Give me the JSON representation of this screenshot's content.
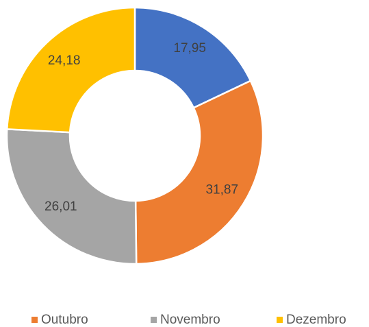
{
  "chart_data": {
    "type": "donut",
    "categories": [
      null,
      "Outubro",
      "Novembro",
      "Dezembro"
    ],
    "values": [
      17.95,
      31.87,
      26.01,
      24.18
    ],
    "value_labels": [
      "17,95",
      "31,87",
      "26,01",
      "24,18"
    ],
    "colors": [
      "#4472c4",
      "#ed7d31",
      "#a5a5a5",
      "#ffc000"
    ],
    "legend": "bottom"
  }
}
